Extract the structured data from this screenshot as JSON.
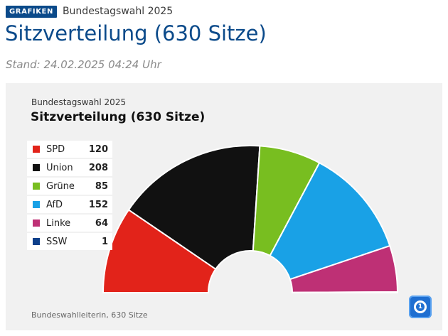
{
  "header": {
    "badge": "GRAFIKEN",
    "subtitle": "Bundestagswahl 2025",
    "title": "Sitzverteilung (630 Sitze)",
    "stand": "Stand: 24.02.2025 04:24 Uhr"
  },
  "card": {
    "kicker": "Bundestagswahl 2025",
    "title": "Sitzverteilung (630 Sitze)",
    "footer": "Bundeswahlleiterin, 630 Sitze",
    "logo_text": "1"
  },
  "chart_data": {
    "type": "pie",
    "subtype": "half-donut (parliament)",
    "total": 630,
    "categories": [
      "SPD",
      "Union",
      "Grüne",
      "AfD",
      "Linke",
      "SSW"
    ],
    "values": [
      120,
      208,
      85,
      152,
      64,
      1
    ],
    "colors": [
      "#e2231a",
      "#111111",
      "#78be20",
      "#19a1e6",
      "#be3075",
      "#0d3f8a"
    ],
    "legend_placement": "left"
  }
}
